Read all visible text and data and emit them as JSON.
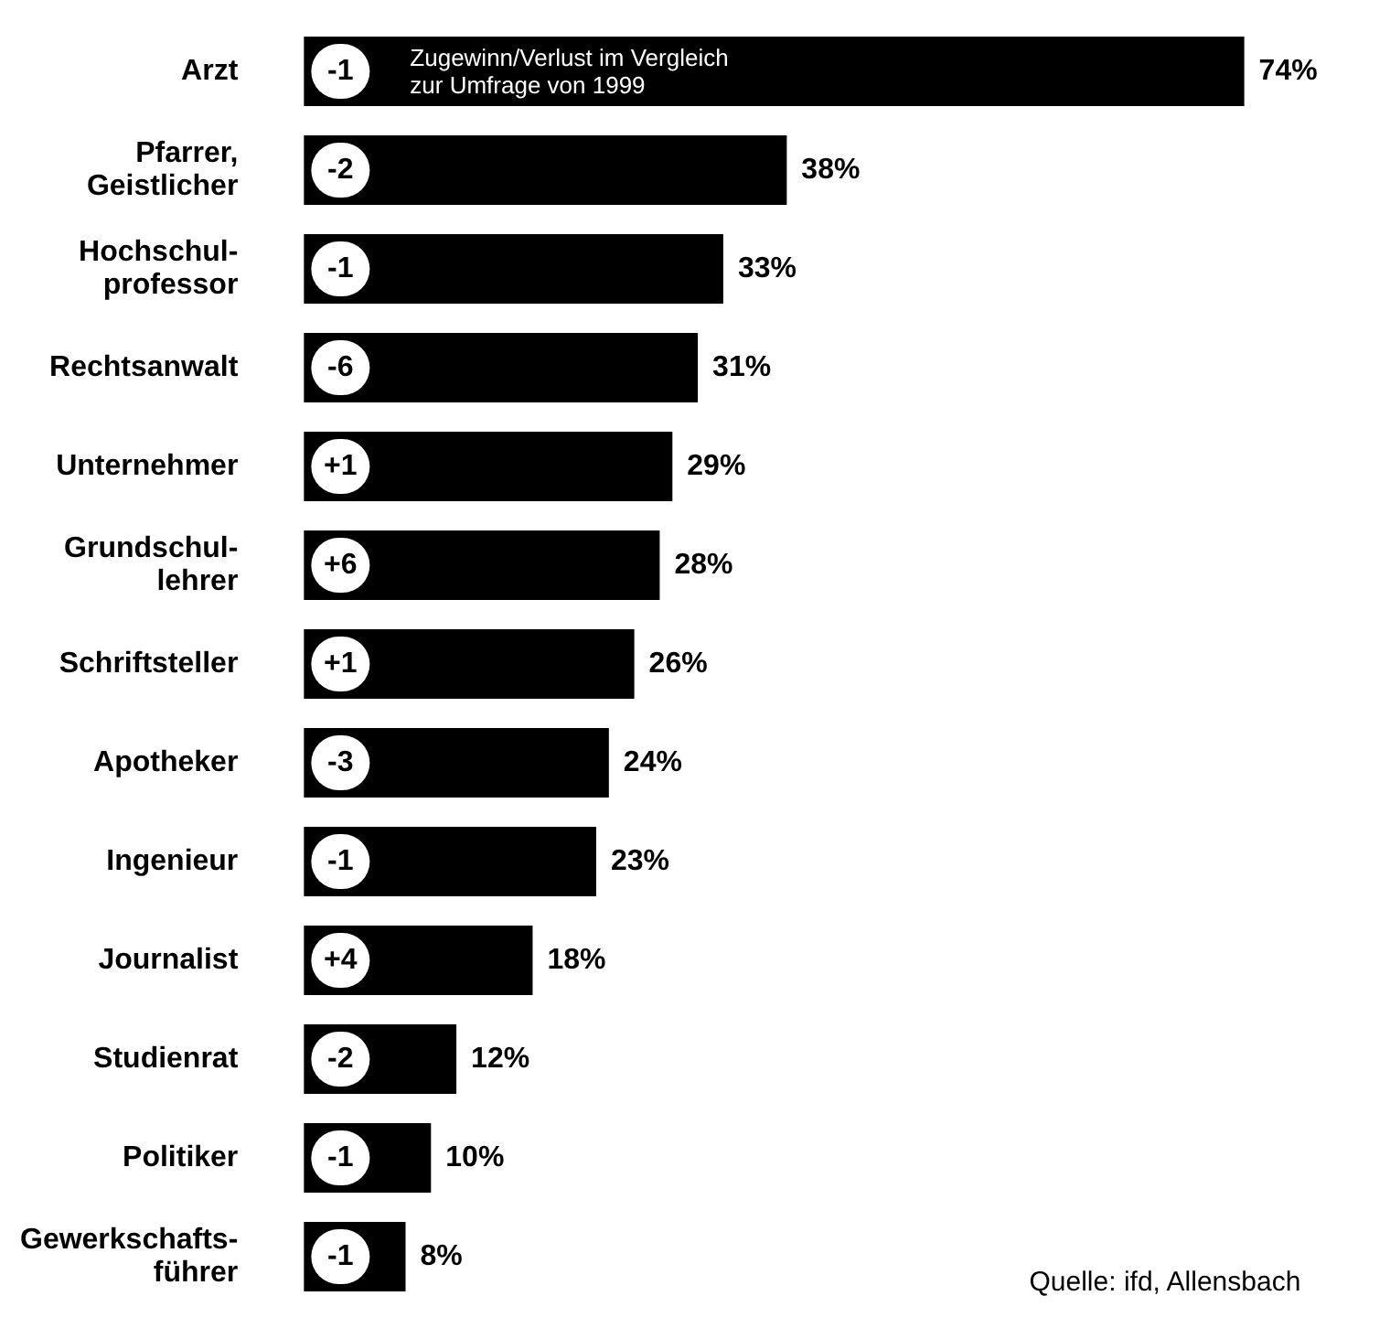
{
  "chart_data": {
    "type": "bar",
    "orientation": "horizontal",
    "categories": [
      "Arzt",
      "Pfarrer,\nGeistlicher",
      "Hochschul-\nprofessor",
      "Rechtsanwalt",
      "Unternehmer",
      "Grundschul-\nlehrer",
      "Schriftsteller",
      "Apotheker",
      "Ingenieur",
      "Journalist",
      "Studienrat",
      "Politiker",
      "Gewerkschafts-\nführer"
    ],
    "values": [
      74,
      38,
      33,
      31,
      29,
      28,
      26,
      24,
      23,
      18,
      12,
      10,
      8
    ],
    "value_labels": [
      "74%",
      "38%",
      "33%",
      "31%",
      "29%",
      "28%",
      "26%",
      "24%",
      "23%",
      "18%",
      "12%",
      "10%",
      "8%"
    ],
    "color": "#000000",
    "annotations": [
      "Zugewinn/Verlust im Vergleich\nzur Umfrage von 1999",
      {
        "text": "-1",
        "y": "Arzt"
      },
      {
        "text": "-2",
        "y": "Pfarrer,\nGeistlicher"
      },
      {
        "text": "-1",
        "y": "Hochschul-\nprofessor"
      },
      {
        "text": "-6",
        "y": "Rechtsanwalt"
      },
      {
        "text": "+1",
        "y": "Unternehmer"
      },
      {
        "text": "+6",
        "y": "Grundschul-\nlehrer"
      },
      {
        "text": "+1",
        "y": "Schriftsteller"
      },
      {
        "text": "-3",
        "y": "Apotheker"
      },
      {
        "text": "-1",
        "y": "Ingenieur"
      },
      {
        "text": "+4",
        "y": "Journalist"
      },
      {
        "text": "-2",
        "y": "Studienrat"
      },
      {
        "text": "-1",
        "y": "Politiker"
      },
      {
        "text": "-1",
        "y": "Gewerkschafts-\nführer"
      },
      "Quelle: ifd, Allensbach"
    ]
  }
}
